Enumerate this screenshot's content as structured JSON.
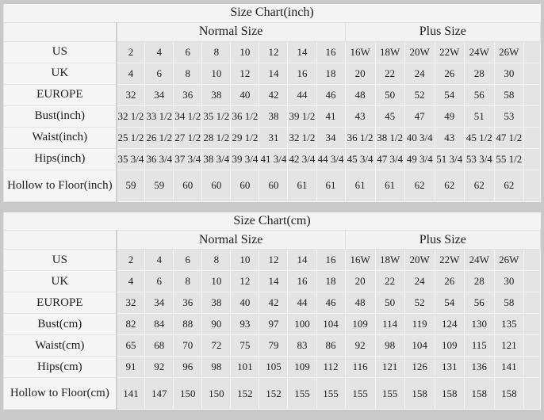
{
  "page": {
    "background_color": "#c9c9c9",
    "table_background_color": "#e4e4e4",
    "label_cell_color": "#f5f5f5",
    "grid_line_color": "#f3f3f3",
    "text_color": "#1c1c1c"
  },
  "chart_data": [
    {
      "type": "table",
      "title": "Size Chart(inch)",
      "column_groups": [
        {
          "label": "",
          "span": 1
        },
        {
          "label": "Normal Size",
          "span": 8
        },
        {
          "label": "Plus Size",
          "span": 7
        }
      ],
      "rows": [
        {
          "label": "US",
          "values": [
            "2",
            "4",
            "6",
            "8",
            "10",
            "12",
            "14",
            "16",
            "16W",
            "18W",
            "20W",
            "22W",
            "24W",
            "26W"
          ]
        },
        {
          "label": "UK",
          "values": [
            "4",
            "6",
            "8",
            "10",
            "12",
            "14",
            "16",
            "18",
            "20",
            "22",
            "24",
            "26",
            "28",
            "30"
          ]
        },
        {
          "label": "EUROPE",
          "values": [
            "32",
            "34",
            "36",
            "38",
            "40",
            "42",
            "44",
            "46",
            "48",
            "50",
            "52",
            "54",
            "56",
            "58"
          ]
        },
        {
          "label": "Bust(inch)",
          "values": [
            "32 1/2",
            "33 1/2",
            "34 1/2",
            "35 1/2",
            "36 1/2",
            "38",
            "39 1/2",
            "41",
            "43",
            "45",
            "47",
            "49",
            "51",
            "53"
          ]
        },
        {
          "label": "Waist(inch)",
          "values": [
            "25 1/2",
            "26 1/2",
            "27 1/2",
            "28 1/2",
            "29 1/2",
            "31",
            "32 1/2",
            "34",
            "36 1/2",
            "38 1/2",
            "40 3/4",
            "43",
            "45 1/2",
            "47 1/2"
          ]
        },
        {
          "label": "Hips(inch)",
          "values": [
            "35 3/4",
            "36 3/4",
            "37 3/4",
            "38 3/4",
            "39 3/4",
            "41 3/4",
            "42 3/4",
            "44 3/4",
            "45 3/4",
            "47 3/4",
            "49 3/4",
            "51 3/4",
            "53 3/4",
            "55 1/2"
          ]
        },
        {
          "label": "Hollow to Floor(inch)",
          "values": [
            "59",
            "59",
            "60",
            "60",
            "60",
            "60",
            "61",
            "61",
            "61",
            "61",
            "62",
            "62",
            "62",
            "62"
          ]
        }
      ]
    },
    {
      "type": "table",
      "title": "Size Chart(cm)",
      "column_groups": [
        {
          "label": "",
          "span": 1
        },
        {
          "label": "Normal Size",
          "span": 8
        },
        {
          "label": "Plus Size",
          "span": 7
        }
      ],
      "rows": [
        {
          "label": "US",
          "values": [
            "2",
            "4",
            "6",
            "8",
            "10",
            "12",
            "14",
            "16",
            "16W",
            "18W",
            "20W",
            "22W",
            "24W",
            "26W"
          ]
        },
        {
          "label": "UK",
          "values": [
            "4",
            "6",
            "8",
            "10",
            "12",
            "14",
            "16",
            "18",
            "20",
            "22",
            "24",
            "26",
            "28",
            "30"
          ]
        },
        {
          "label": "EUROPE",
          "values": [
            "32",
            "34",
            "36",
            "38",
            "40",
            "42",
            "44",
            "46",
            "48",
            "50",
            "52",
            "54",
            "56",
            "58"
          ]
        },
        {
          "label": "Bust(cm)",
          "values": [
            "82",
            "84",
            "88",
            "90",
            "93",
            "97",
            "100",
            "104",
            "109",
            "114",
            "119",
            "124",
            "130",
            "135"
          ]
        },
        {
          "label": "Waist(cm)",
          "values": [
            "65",
            "68",
            "70",
            "72",
            "75",
            "79",
            "83",
            "86",
            "92",
            "98",
            "104",
            "109",
            "115",
            "121"
          ]
        },
        {
          "label": "Hips(cm)",
          "values": [
            "91",
            "92",
            "96",
            "98",
            "101",
            "105",
            "109",
            "112",
            "116",
            "121",
            "126",
            "131",
            "136",
            "141"
          ]
        },
        {
          "label": "Hollow to Floor(cm)",
          "values": [
            "141",
            "147",
            "150",
            "150",
            "152",
            "152",
            "155",
            "155",
            "155",
            "155",
            "158",
            "158",
            "158",
            "158"
          ]
        }
      ]
    }
  ]
}
